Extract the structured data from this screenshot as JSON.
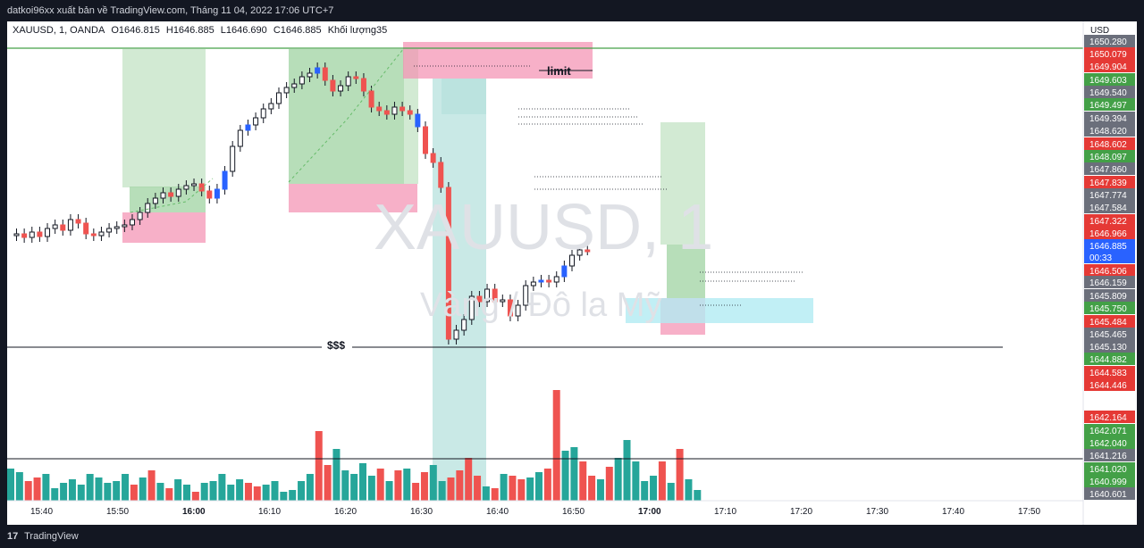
{
  "header": {
    "publisher_text": "datkoi96xx xuất bản về TradingView.com, Tháng 11 04, 2022 17:06 UTC+7"
  },
  "legend": {
    "symbol": "XAUUSD, 1, OANDA",
    "open": "O1646.815",
    "high": "H1646.885",
    "low": "L1646.690",
    "close": "C1646.885",
    "volume_label": "Khối lượng35"
  },
  "watermark": {
    "symbol": "XAUUSD, 1",
    "subtitle": "Vàng / Đô la Mỹ"
  },
  "annotations": {
    "limit": "limit",
    "liquidity": "$$$"
  },
  "price_axis": {
    "currency": "USD",
    "countdown": "00:33",
    "labels": [
      {
        "text": "1650.280",
        "bg": "#6b6f7b"
      },
      {
        "text": "1650.079",
        "bg": "#e53935"
      },
      {
        "text": "1649.904",
        "bg": "#e53935"
      },
      {
        "text": "1649.603",
        "bg": "#43a047"
      },
      {
        "text": "1649.540",
        "bg": "#6b6f7b"
      },
      {
        "text": "1649.497",
        "bg": "#43a047"
      },
      {
        "text": "1649.394",
        "bg": "#6b6f7b"
      },
      {
        "text": "1648.620",
        "bg": "#6b6f7b"
      },
      {
        "text": "1648.602",
        "bg": "#e53935"
      },
      {
        "text": "1648.097",
        "bg": "#43a047"
      },
      {
        "text": "1647.860",
        "bg": "#6b6f7b"
      },
      {
        "text": "1647.839",
        "bg": "#e53935"
      },
      {
        "text": "1647.774",
        "bg": "#6b6f7b"
      },
      {
        "text": "1647.584",
        "bg": "#6b6f7b"
      },
      {
        "text": "1647.322",
        "bg": "#e53935"
      },
      {
        "text": "1646.966",
        "bg": "#e53935"
      },
      {
        "text": "1646.885",
        "bg": "#2962ff"
      },
      {
        "text": "1646.506",
        "bg": "#e53935"
      },
      {
        "text": "1646.159",
        "bg": "#6b6f7b"
      },
      {
        "text": "1645.809",
        "bg": "#6b6f7b"
      },
      {
        "text": "1645.750",
        "bg": "#43a047"
      },
      {
        "text": "1645.484",
        "bg": "#e53935"
      },
      {
        "text": "1645.465",
        "bg": "#6b6f7b"
      },
      {
        "text": "1645.130",
        "bg": "#6b6f7b"
      },
      {
        "text": "1644.882",
        "bg": "#43a047"
      },
      {
        "text": "1644.583",
        "bg": "#e53935"
      },
      {
        "text": "1644.446",
        "bg": "#e53935"
      },
      {
        "text": "1642.164",
        "bg": "#e53935"
      },
      {
        "text": "1642.071",
        "bg": "#43a047"
      },
      {
        "text": "1642.040",
        "bg": "#43a047"
      },
      {
        "text": "1641.216",
        "bg": "#6b6f7b"
      },
      {
        "text": "1641.020",
        "bg": "#43a047"
      },
      {
        "text": "1640.999",
        "bg": "#43a047"
      },
      {
        "text": "1640.601",
        "bg": "#6b6f7b"
      }
    ]
  },
  "time_axis": {
    "labels": [
      {
        "text": "15:40",
        "bold": false
      },
      {
        "text": "15:50",
        "bold": false
      },
      {
        "text": "16:00",
        "bold": true
      },
      {
        "text": "16:10",
        "bold": false
      },
      {
        "text": "16:20",
        "bold": false
      },
      {
        "text": "16:30",
        "bold": false
      },
      {
        "text": "16:40",
        "bold": false
      },
      {
        "text": "16:50",
        "bold": false
      },
      {
        "text": "17:00",
        "bold": true
      },
      {
        "text": "17:10",
        "bold": false
      },
      {
        "text": "17:20",
        "bold": false
      },
      {
        "text": "17:30",
        "bold": false
      },
      {
        "text": "17:40",
        "bold": false
      },
      {
        "text": "17:50",
        "bold": false
      }
    ]
  },
  "footer": {
    "logo": "17",
    "brand": "TradingView"
  },
  "colors": {
    "up": "#26a69a",
    "down": "#ef5350",
    "blue_candle": "#2962ff",
    "green_zone": "#a5d6a7",
    "red_zone": "#f48fb1",
    "teal_zone": "#b2dfdb",
    "cyan_zone": "#b2ebf2"
  }
}
